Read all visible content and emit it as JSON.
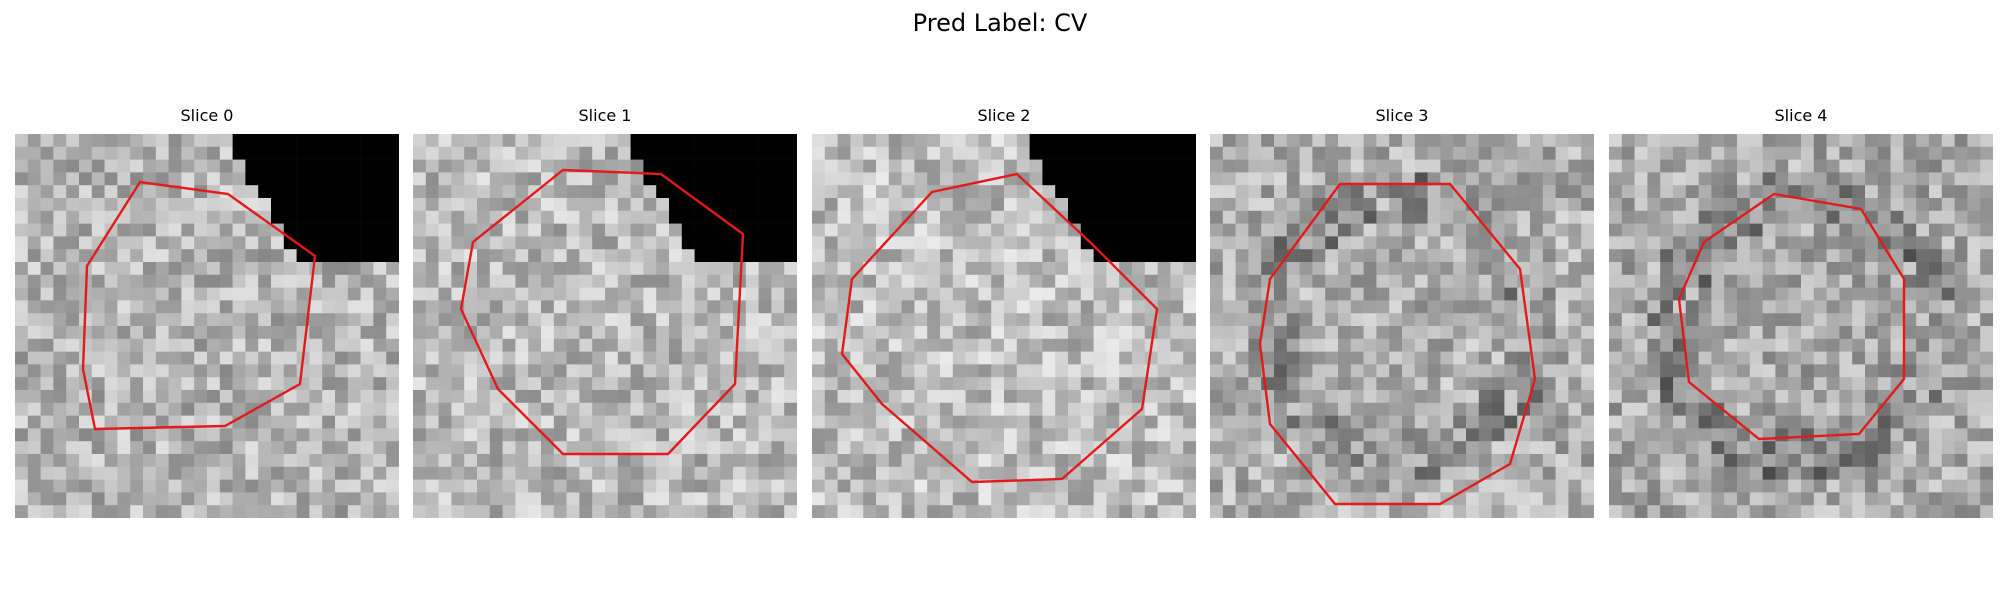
{
  "figure": {
    "title": "Pred Label: CV"
  },
  "contour_color": "#e31a1c",
  "slices": [
    {
      "label": "Slice 0",
      "mean_gray": 180,
      "dark_corner": true,
      "dark_ring": false
    },
    {
      "label": "Slice 1",
      "mean_gray": 185,
      "dark_corner": true,
      "dark_ring": false
    },
    {
      "label": "Slice 2",
      "mean_gray": 190,
      "dark_corner": true,
      "dark_ring": false
    },
    {
      "label": "Slice 3",
      "mean_gray": 175,
      "dark_corner": false,
      "dark_ring": true
    },
    {
      "label": "Slice 4",
      "mean_gray": 170,
      "dark_corner": false,
      "dark_ring": true
    }
  ]
}
